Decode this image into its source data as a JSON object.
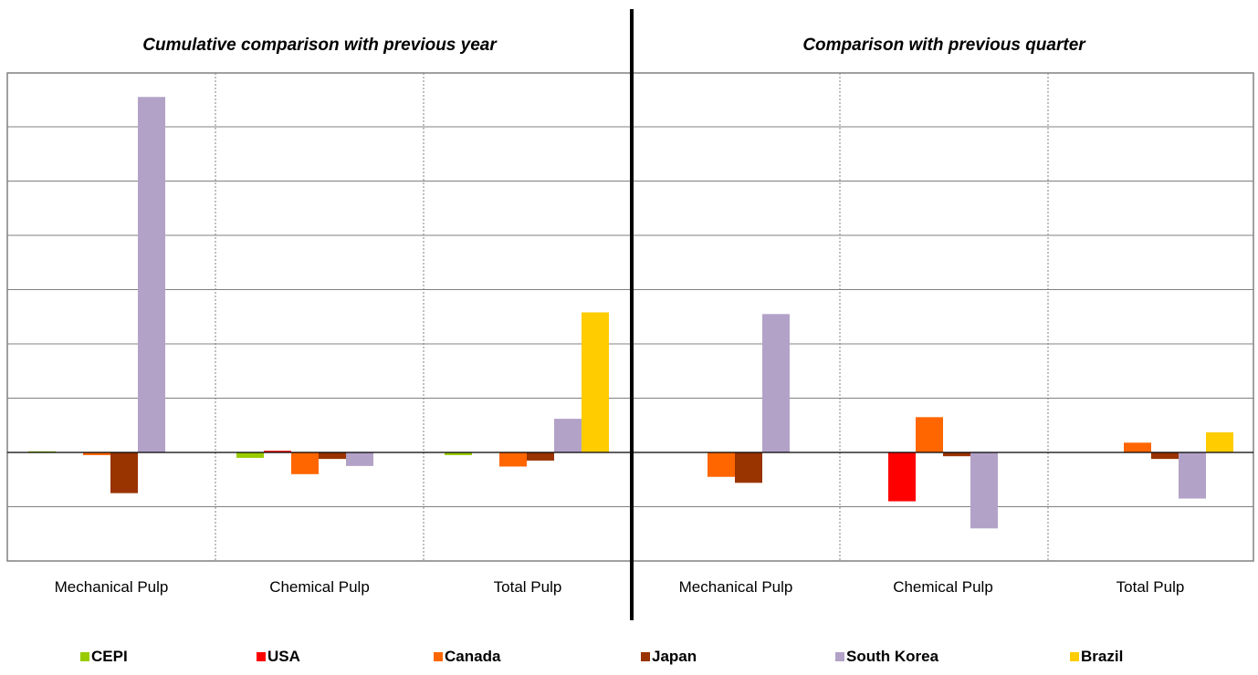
{
  "colors": {
    "CEPI": "#99cc00",
    "USA": "#ff0000",
    "Canada": "#ff6600",
    "Japan": "#993300",
    "South Korea": "#b3a2c7",
    "Brazil": "#ffcc00"
  },
  "legend": [
    "CEPI",
    "USA",
    "Canada",
    "Japan",
    "South Korea",
    "Brazil"
  ],
  "chart_data": [
    {
      "type": "bar",
      "title": "Cumulative comparison with previous year",
      "categories": [
        "Mechanical Pulp",
        "Chemical Pulp",
        "Total Pulp"
      ],
      "ylim": [
        -2,
        8
      ],
      "grid": true,
      "series": [
        {
          "name": "CEPI",
          "values": [
            0.02,
            -0.1,
            -0.05
          ]
        },
        {
          "name": "USA",
          "values": [
            0,
            0.03,
            0
          ]
        },
        {
          "name": "Canada",
          "values": [
            -0.05,
            -0.4,
            -0.26
          ]
        },
        {
          "name": "Japan",
          "values": [
            -0.75,
            -0.12,
            -0.15
          ]
        },
        {
          "name": "South Korea",
          "values": [
            6.55,
            -0.25,
            0.62
          ]
        },
        {
          "name": "Brazil",
          "values": [
            0,
            0,
            2.58
          ]
        }
      ]
    },
    {
      "type": "bar",
      "title": "Comparison with previous quarter",
      "categories": [
        "Mechanical Pulp",
        "Chemical Pulp",
        "Total Pulp"
      ],
      "ylim": [
        -2,
        8
      ],
      "grid": true,
      "series": [
        {
          "name": "CEPI",
          "values": [
            0,
            0,
            0
          ]
        },
        {
          "name": "USA",
          "values": [
            0,
            -0.9,
            0
          ]
        },
        {
          "name": "Canada",
          "values": [
            -0.45,
            0.65,
            0.18
          ]
        },
        {
          "name": "Japan",
          "values": [
            -0.56,
            -0.07,
            -0.12
          ]
        },
        {
          "name": "South Korea",
          "values": [
            2.55,
            -1.4,
            -0.85
          ]
        },
        {
          "name": "Brazil",
          "values": [
            0,
            0,
            0.37
          ]
        }
      ]
    }
  ]
}
